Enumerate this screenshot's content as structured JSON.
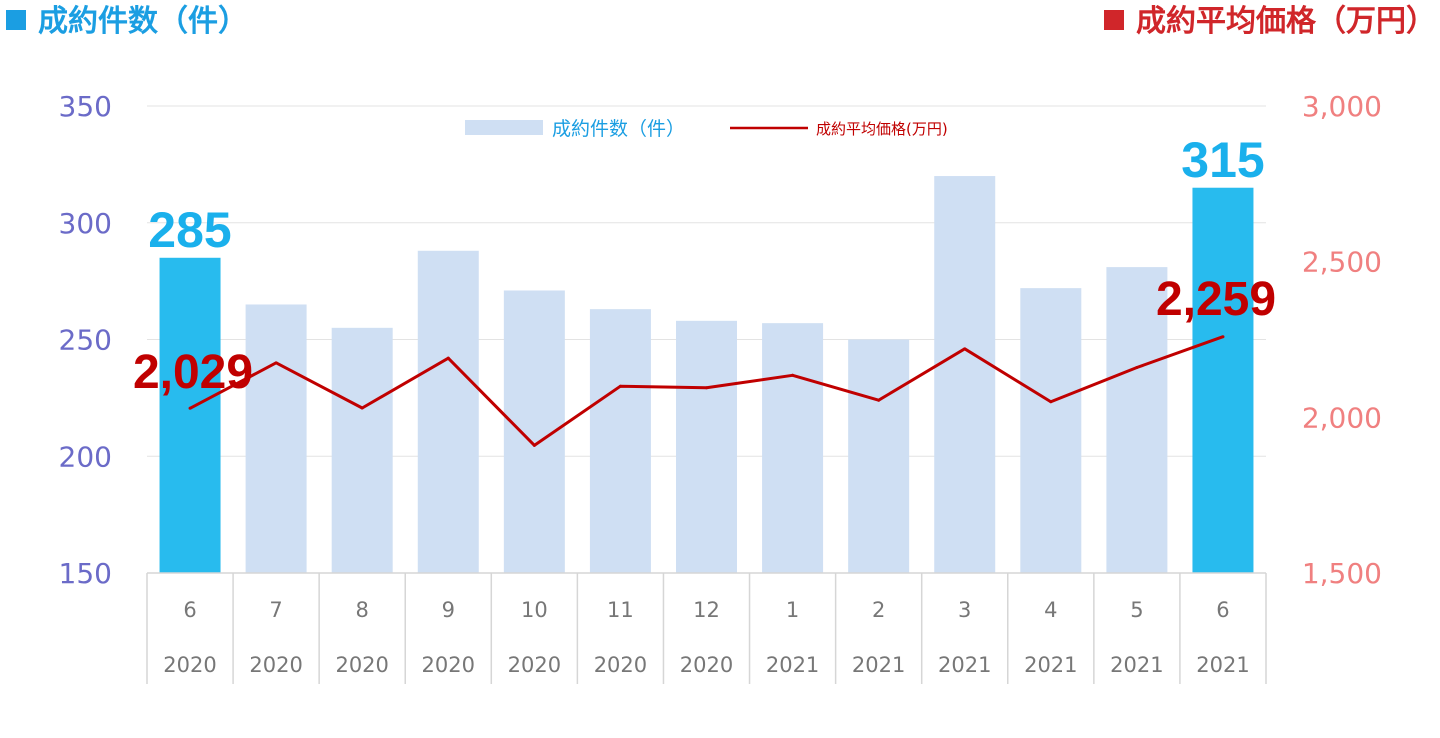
{
  "titles": {
    "left": "成約件数（件）",
    "right": "成約平均価格（万円）"
  },
  "colors": {
    "bar": "#cfdff3",
    "bar_highlight": "#28bbee",
    "line": "#c00000",
    "left_axis": "#6b6bc8",
    "right_axis": "#f08080"
  },
  "chart_data": {
    "type": "bar",
    "categories": [
      "6\n2020",
      "7\n2020",
      "8\n2020",
      "9\n2020",
      "10\n2020",
      "11\n2020",
      "12\n2020",
      "1\n2021",
      "2\n2021",
      "3\n2021",
      "4\n2021",
      "5\n2021",
      "6\n2021"
    ],
    "category_month": [
      "6",
      "7",
      "8",
      "9",
      "10",
      "11",
      "12",
      "1",
      "2",
      "3",
      "4",
      "5",
      "6"
    ],
    "category_year": [
      "2020",
      "2020",
      "2020",
      "2020",
      "2020",
      "2020",
      "2020",
      "2021",
      "2021",
      "2021",
      "2021",
      "2021",
      "2021"
    ],
    "series": [
      {
        "name": "成約件数（件）",
        "type": "bar",
        "axis": "left",
        "values": [
          285,
          265,
          255,
          288,
          271,
          263,
          258,
          257,
          250,
          320,
          272,
          281,
          315
        ],
        "highlight": [
          true,
          false,
          false,
          false,
          false,
          false,
          false,
          false,
          false,
          false,
          false,
          false,
          true
        ]
      },
      {
        "name": "成約平均価格(万円)",
        "type": "line",
        "axis": "right",
        "values": [
          2029,
          2175,
          2030,
          2190,
          1910,
          2100,
          2095,
          2135,
          2055,
          2220,
          2050,
          2160,
          2259
        ]
      }
    ],
    "y_left": {
      "lim": [
        150,
        350
      ],
      "ticks": [
        "150",
        "200",
        "250",
        "300",
        "350"
      ]
    },
    "y_right": {
      "lim": [
        1500,
        3000
      ],
      "ticks": [
        "1,500",
        "2,000",
        "2,500",
        "3,000"
      ]
    },
    "callouts": {
      "bar_first": "285",
      "bar_last": "315",
      "line_first": "2,029",
      "line_last": "2,259"
    },
    "legend": {
      "placement": "top-center",
      "items": [
        "成約件数（件）",
        "成約平均価格(万円)"
      ]
    },
    "grid": true
  }
}
